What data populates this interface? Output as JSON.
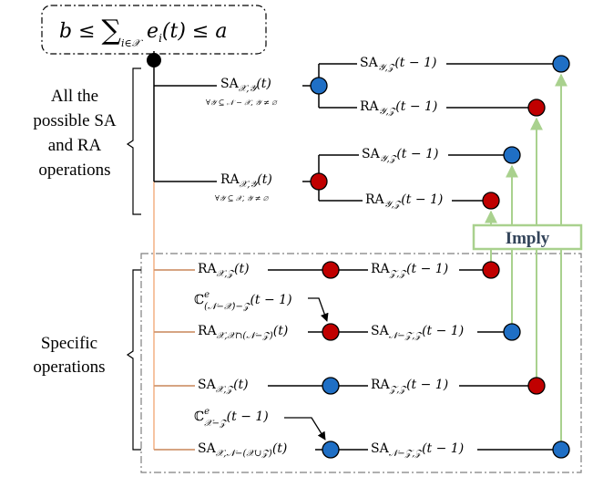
{
  "header": {
    "formula_left": "b ≤ ",
    "formula_sum": "∑",
    "formula_sub": "i∈𝒳",
    "formula_right": " e",
    "formula_index": "i",
    "formula_end": "(t) ≤ a"
  },
  "labels": {
    "general_line1": "All the",
    "general_line2": "possible SA",
    "general_line3": "and RA",
    "general_line4": "operations",
    "specific_line1": "Specific",
    "specific_line2": "operations",
    "imply": "Imply"
  },
  "general": {
    "sa_main": "SA",
    "sa_main_sub": "𝒳,𝒴",
    "sa_main_arg": "(t)",
    "sa_cond": "∀𝒴 ⊆ 𝒩 − 𝒳, 𝒴 ≠ ∅",
    "sa_child1": "SA",
    "sa_child1_sub": "𝒴,𝒵",
    "sa_child1_arg": "(t − 1)",
    "sa_child2": "RA",
    "sa_child2_sub": "𝒴,𝒵",
    "sa_child2_arg": "(t − 1)",
    "ra_main": "RA",
    "ra_main_sub": "𝒳,𝒴",
    "ra_main_arg": "(t)",
    "ra_cond": "∀𝒴 ⊆ 𝒳, 𝒴 ≠ ∅",
    "ra_child1": "SA",
    "ra_child1_sub": "𝒴,𝒵",
    "ra_child1_arg": "(t − 1)",
    "ra_child2": "RA",
    "ra_child2_sub": "𝒴,𝒵",
    "ra_child2_arg": "(t − 1)"
  },
  "specific": {
    "r1_left": "RA",
    "r1_left_sub": "𝒳,𝒵",
    "r1_left_arg": "(t)",
    "r1_right": "RA",
    "r1_right_sub": "𝒵,𝒵",
    "r1_right_arg": "(t − 1)",
    "c1": "ℂ",
    "c1_sup": "e",
    "c1_sub": "(𝒩−𝒳)−𝒵",
    "c1_arg": "(t − 1)",
    "r2_left": "RA",
    "r2_left_sub": "𝒳,𝒳∩(𝒩−𝒵)",
    "r2_left_arg": "(t)",
    "r2_right": "SA",
    "r2_right_sub": "𝒩−𝒵,𝒵",
    "r2_right_arg": "(t − 1)",
    "r3_left": "SA",
    "r3_left_sub": "𝒳,𝒵",
    "r3_left_arg": "(t)",
    "r3_right": "RA",
    "r3_right_sub": "𝒵,𝒵",
    "r3_right_arg": "(t − 1)",
    "c2": "ℂ",
    "c2_sup": "e",
    "c2_sub": "𝒳−𝒵",
    "c2_arg": "(t − 1)",
    "r4_left": "SA",
    "r4_left_sub": "𝒳,𝒩−(𝒳∪𝒵)",
    "r4_left_arg": "(t)",
    "r4_right": "SA",
    "r4_right_sub": "𝒩−𝒵,𝒵",
    "r4_right_arg": "(t − 1)"
  },
  "colors": {
    "sa_node": "#1f6fc5",
    "ra_node": "#c00000",
    "root_node": "#000000",
    "orange_line": "#f4b183",
    "green_arrow": "#a9d18e",
    "imply_text": "#33445a",
    "dashed_box": "#7f7f7f"
  }
}
